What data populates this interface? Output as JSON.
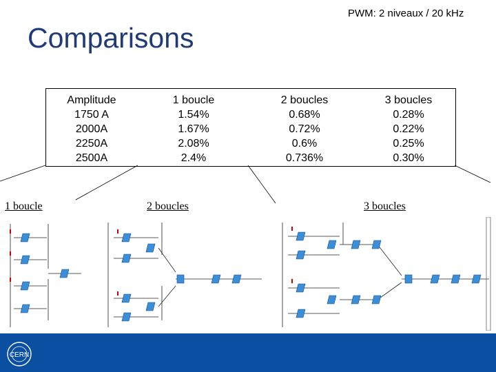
{
  "header": {
    "pwm_note": "PWM: 2 niveaux / 20 kHz",
    "title": "Comparisons"
  },
  "table": {
    "columns": [
      {
        "header": "Amplitude",
        "values": [
          "1750 A",
          "2000A",
          "2250A",
          "2500A"
        ]
      },
      {
        "header": "1 boucle",
        "values": [
          "1.54%",
          "1.67%",
          "2.08%",
          "2.4%"
        ]
      },
      {
        "header": "2 boucles",
        "values": [
          "0.68%",
          "0.72%",
          "0.6%",
          "0.736%"
        ]
      },
      {
        "header": "3 boucles",
        "values": [
          "0.28%",
          "0.22%",
          "0.25%",
          "0.30%"
        ]
      }
    ]
  },
  "panels": {
    "p1": "1 boucle",
    "p2": "2 boucles",
    "p3": "3 boucles"
  },
  "footer": {
    "logo": "CERN"
  },
  "colors": {
    "title": "#1f3a78",
    "footer": "#0a4fa2",
    "block": "#3b8fd9"
  }
}
